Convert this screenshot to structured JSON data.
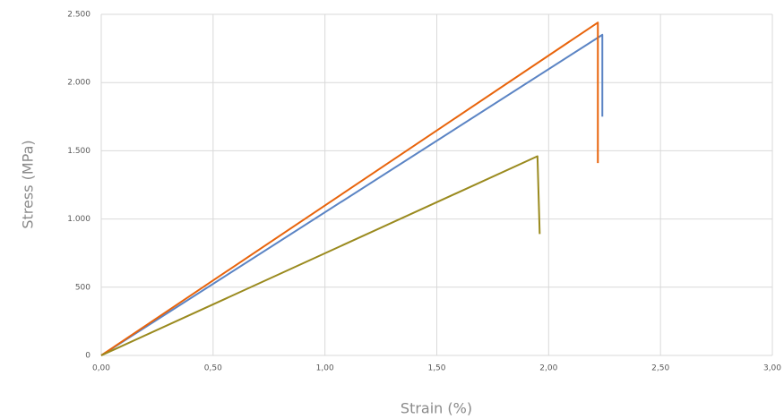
{
  "chart_data": {
    "type": "line",
    "xlabel": "Strain (%)",
    "ylabel": "Stress (MPa)",
    "xlim": [
      0,
      3
    ],
    "xticks": [
      {
        "value": 0,
        "label": "0,00"
      },
      {
        "value": 0.5,
        "label": "0,50"
      },
      {
        "value": 1,
        "label": "1,00"
      },
      {
        "value": 1.5,
        "label": "1,50"
      },
      {
        "value": 2,
        "label": "2,00"
      },
      {
        "value": 2.5,
        "label": "2,50"
      },
      {
        "value": 3,
        "label": "3,00"
      }
    ],
    "ylim": [
      0,
      2500
    ],
    "yticks": [
      0,
      500,
      {
        "value": 1000,
        "label": "1.000"
      },
      {
        "value": 1500,
        "label": "1.500"
      },
      {
        "value": 2000,
        "label": "2.000"
      },
      {
        "value": 2500,
        "label": "2.500"
      }
    ],
    "grid": true,
    "series": [
      {
        "color": "#5b84c4",
        "x": [
          0,
          2.24,
          2.24
        ],
        "values": [
          0,
          2350,
          1750
        ]
      },
      {
        "color": "#e8640c",
        "x": [
          0,
          2.22,
          2.22
        ],
        "values": [
          0,
          2440,
          1410
        ]
      },
      {
        "color": "#9a8a1e",
        "x": [
          0,
          1.95,
          1.96
        ],
        "values": [
          0,
          1460,
          890
        ]
      }
    ]
  }
}
